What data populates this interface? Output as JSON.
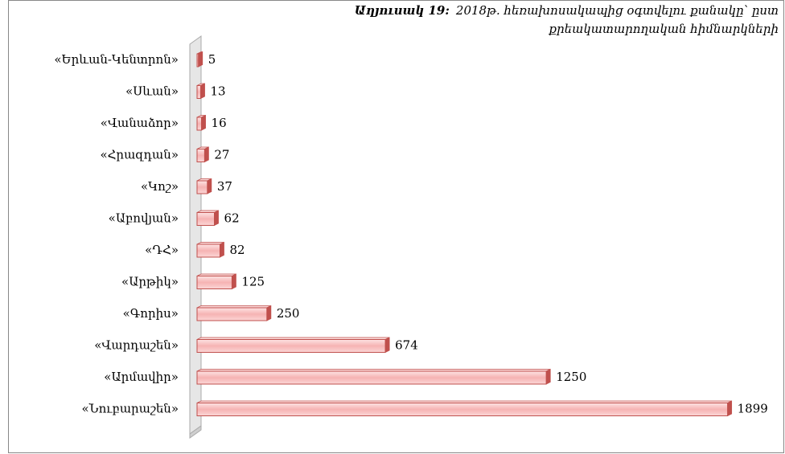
{
  "chart_data": {
    "type": "bar",
    "orientation": "horizontal",
    "title_prefix": "Աղյուսակ 19:",
    "title_lines": [
      "2018թ. հեռախոսակապից օգտվելու քանակը՝ ըստ",
      "քրեակատարողական հիմնարկների"
    ],
    "categories": [
      "«Երևան-Կենտրոն»",
      "«Սևան»",
      "«Վանաձոր»",
      "«Հրազդան»",
      "«Կոշ»",
      "«Աբովյան»",
      "«ԴՀ»",
      "«Արթիկ»",
      "«Գորիս»",
      "«Վարդաշեն»",
      "«Արմավիր»",
      "«Նուբարաշեն»"
    ],
    "values": [
      5,
      13,
      16,
      27,
      37,
      62,
      82,
      125,
      250,
      674,
      1250,
      1899
    ],
    "color": "#f8c4c4",
    "edge_color": "#c0504d",
    "xlim": [
      0,
      1900
    ]
  }
}
